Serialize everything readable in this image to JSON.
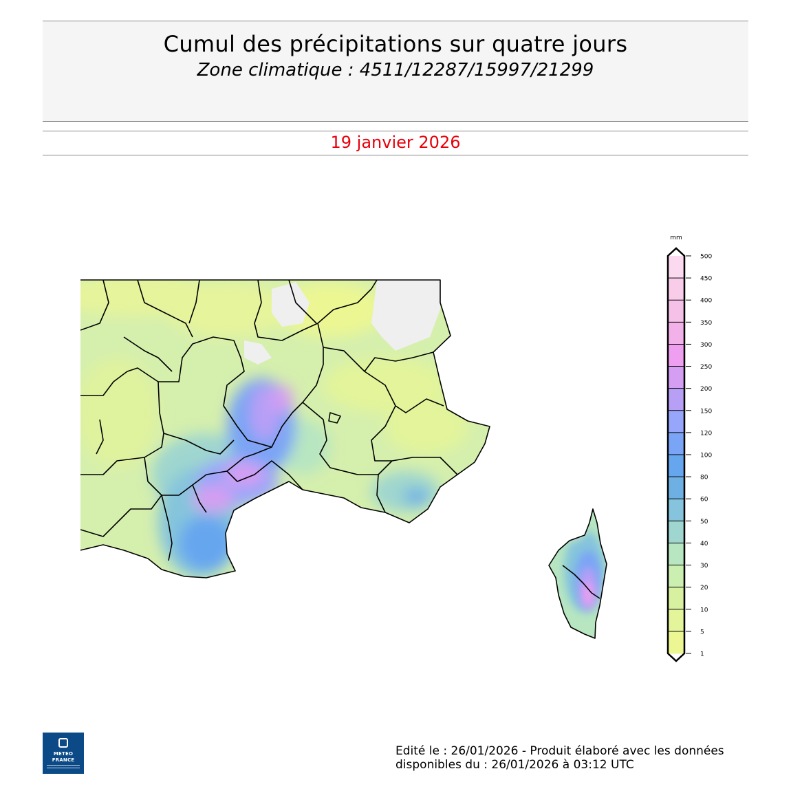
{
  "header": {
    "title": "Cumul des précipitations sur quatre jours",
    "subtitle": "Zone climatique : 4511/12287/15997/21299"
  },
  "date": "19 janvier 2026",
  "legend": {
    "unit": "mm",
    "levels": [
      "500",
      "450",
      "400",
      "350",
      "300",
      "250",
      "200",
      "150",
      "120",
      "100",
      "80",
      "60",
      "50",
      "40",
      "30",
      "20",
      "10",
      "5",
      "1"
    ],
    "colors": [
      "#fbd9ee",
      "#f9cdea",
      "#f6c1e8",
      "#f3b1ea",
      "#ef9ff0",
      "#d49ef2",
      "#b89ff6",
      "#97a6fa",
      "#7aa4f5",
      "#66a6ef",
      "#6fb0e4",
      "#85c4dc",
      "#9fd6cf",
      "#b7e6c1",
      "#cbefb0",
      "#d8f1a0",
      "#e3f49a",
      "#ecf793"
    ]
  },
  "map": {
    "description_colors": {
      "background": "#ffffff",
      "no_data": "#efefef",
      "border": "#000000"
    }
  },
  "logo": {
    "line1": "METEO",
    "line2": "FRANCE"
  },
  "footer": {
    "line1": "Edité le : 26/01/2026 - Produit élaboré avec les données",
    "line2": "disponibles du : 26/01/2026 à 03:12 UTC"
  }
}
